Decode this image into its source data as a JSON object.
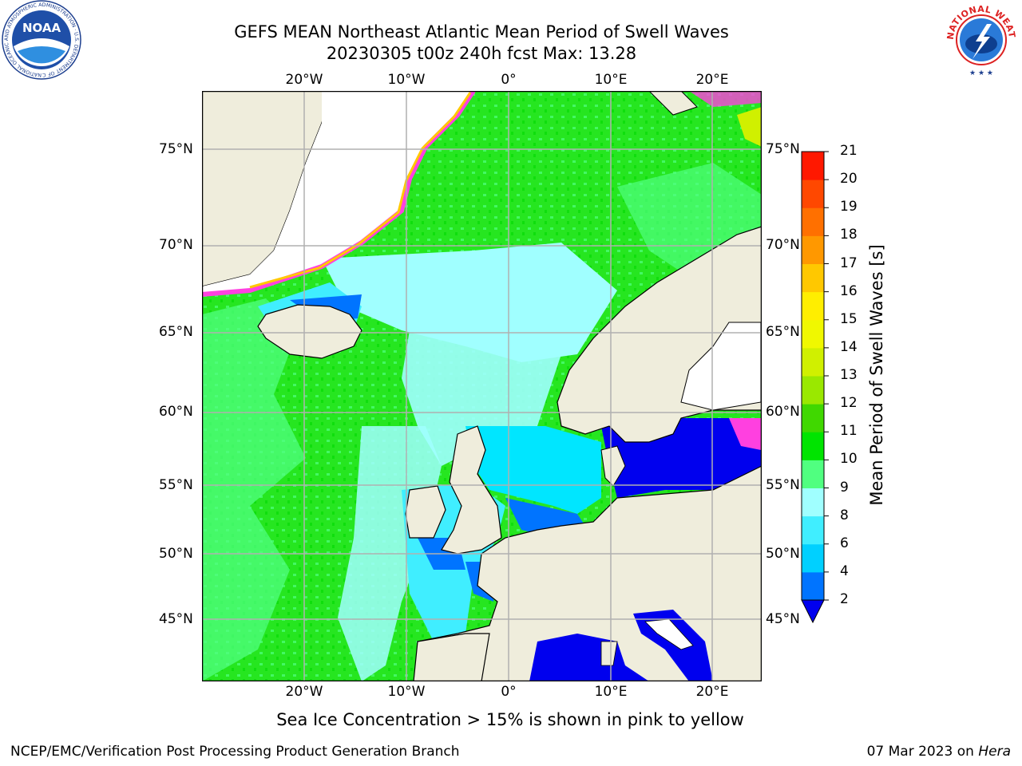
{
  "title": {
    "line1": "GEFS MEAN Northeast Atlantic Mean Period of Swell Waves",
    "line2": "20230305 t00z 240h fcst   Max: 13.28"
  },
  "logos": {
    "left": {
      "name": "noaa-logo",
      "text": "NOAA",
      "ring_text": "NATIONAL OCEANIC AND ATMOSPHERIC ADMINISTRATION · U.S. DEPARTMENT OF COMMERCE"
    },
    "right": {
      "name": "nws-logo",
      "ring_text": "NATIONAL WEATHER SERVICE"
    }
  },
  "map": {
    "lon_labels": [
      "20°W",
      "10°W",
      "0°",
      "10°E",
      "20°E"
    ],
    "lat_labels": [
      "75°N",
      "70°N",
      "65°N",
      "60°N",
      "55°N",
      "50°N",
      "45°N"
    ],
    "land_color": "#efeddc",
    "grid_color": "#b0b0b0"
  },
  "colorbar": {
    "label": "Mean Period of Swell Waves [s]",
    "ticks": [
      "2",
      "4",
      "6",
      "8",
      "9",
      "10",
      "11",
      "12",
      "13",
      "14",
      "15",
      "16",
      "17",
      "18",
      "19",
      "20",
      "21"
    ],
    "colors": [
      "#0074ff",
      "#00d0ff",
      "#40eeff",
      "#a0ffff",
      "#50ff80",
      "#00e400",
      "#40d800",
      "#9ae800",
      "#d0f000",
      "#f0f800",
      "#ffee00",
      "#ffc800",
      "#ff9800",
      "#ff7000",
      "#ff4800",
      "#ff1800"
    ],
    "under_color": "#0000ee"
  },
  "footer": {
    "note": "Sea Ice Concentration > 15% is shown in pink to yellow",
    "credit": "NCEP/EMC/Verification Post Processing Product Generation Branch",
    "date_prefix": "07 Mar 2023 on ",
    "date_host": "Hera"
  }
}
